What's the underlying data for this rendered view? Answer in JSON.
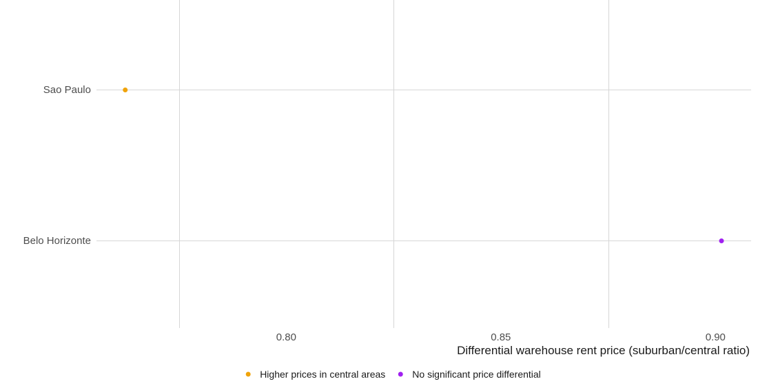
{
  "chart_data": {
    "type": "scatter",
    "title": "",
    "xlabel": "Differential warehouse rent price (suburban/central ratio)",
    "ylabel": "",
    "xlim": [
      0.7558,
      0.9083
    ],
    "x_ticks": [
      0.8,
      0.85,
      0.9
    ],
    "x_tick_labels": [
      "0.80",
      "0.85",
      "0.90"
    ],
    "x_minor_gridlines": [
      0.775,
      0.825,
      0.875
    ],
    "categories": [
      "Sao Paulo",
      "Belo Horizonte"
    ],
    "grid": true,
    "legend_position": "bottom",
    "series": [
      {
        "name": "Higher prices in central areas",
        "color": "#F0A30A",
        "points": [
          {
            "category": "Sao Paulo",
            "x": 0.7625
          }
        ]
      },
      {
        "name": "No significant price differential",
        "color": "#A020F0",
        "points": [
          {
            "category": "Belo Horizonte",
            "x": 0.9014
          }
        ]
      }
    ]
  }
}
